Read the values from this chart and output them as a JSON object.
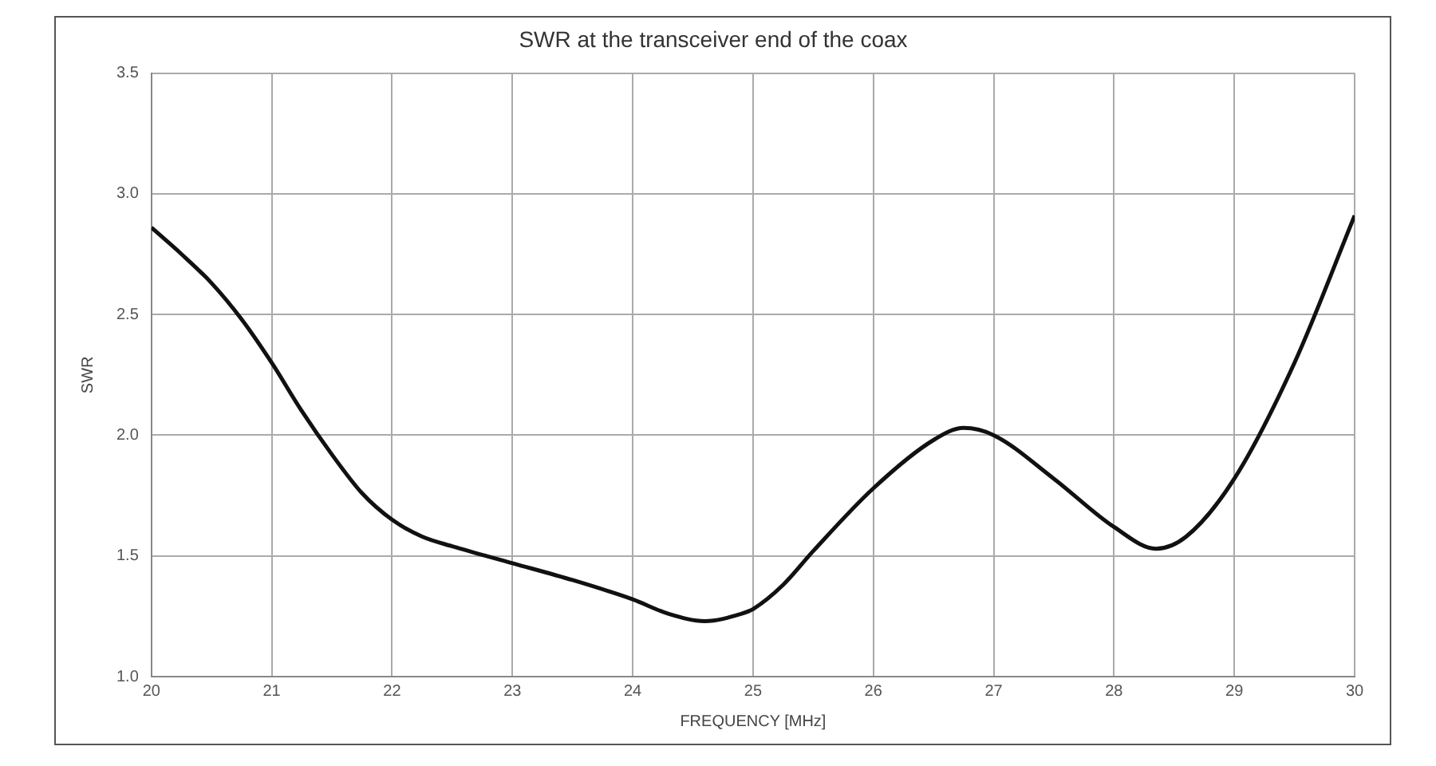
{
  "chart_data": {
    "type": "line",
    "title": "SWR at the transceiver end of the coax",
    "xlabel": "FREQUENCY [MHz]",
    "ylabel": "SWR",
    "x": [
      20,
      20.25,
      20.5,
      20.75,
      21,
      21.25,
      21.5,
      21.75,
      22,
      22.25,
      22.5,
      23,
      23.5,
      24,
      24.3,
      24.6,
      24.9,
      25,
      25.25,
      25.5,
      26,
      26.5,
      26.75,
      27,
      27.5,
      28,
      28.35,
      28.6,
      29,
      29.5,
      30
    ],
    "series": [
      {
        "color": "#111111",
        "values": [
          2.86,
          2.75,
          2.63,
          2.48,
          2.3,
          2.1,
          1.92,
          1.76,
          1.65,
          1.58,
          1.54,
          1.47,
          1.4,
          1.32,
          1.26,
          1.23,
          1.26,
          1.28,
          1.38,
          1.52,
          1.78,
          1.98,
          2.03,
          2.0,
          1.82,
          1.62,
          1.53,
          1.58,
          1.82,
          2.3,
          2.91
        ]
      }
    ],
    "xlim": [
      20,
      30
    ],
    "xticks": [
      20,
      21,
      22,
      23,
      24,
      25,
      26,
      27,
      28,
      29,
      30
    ],
    "ylim": [
      1.0,
      3.5
    ],
    "yticks": [
      {
        "value": 1.0,
        "label": "1.0"
      },
      {
        "value": 1.5,
        "label": "1.5"
      },
      {
        "value": 2.0,
        "label": "2.0"
      },
      {
        "value": 2.5,
        "label": "2.5"
      },
      {
        "value": 3.0,
        "label": "3.0"
      },
      {
        "value": 3.5,
        "label": "3.5"
      }
    ],
    "grid": true,
    "legend": false,
    "marker": "none",
    "line_style": "solid"
  }
}
